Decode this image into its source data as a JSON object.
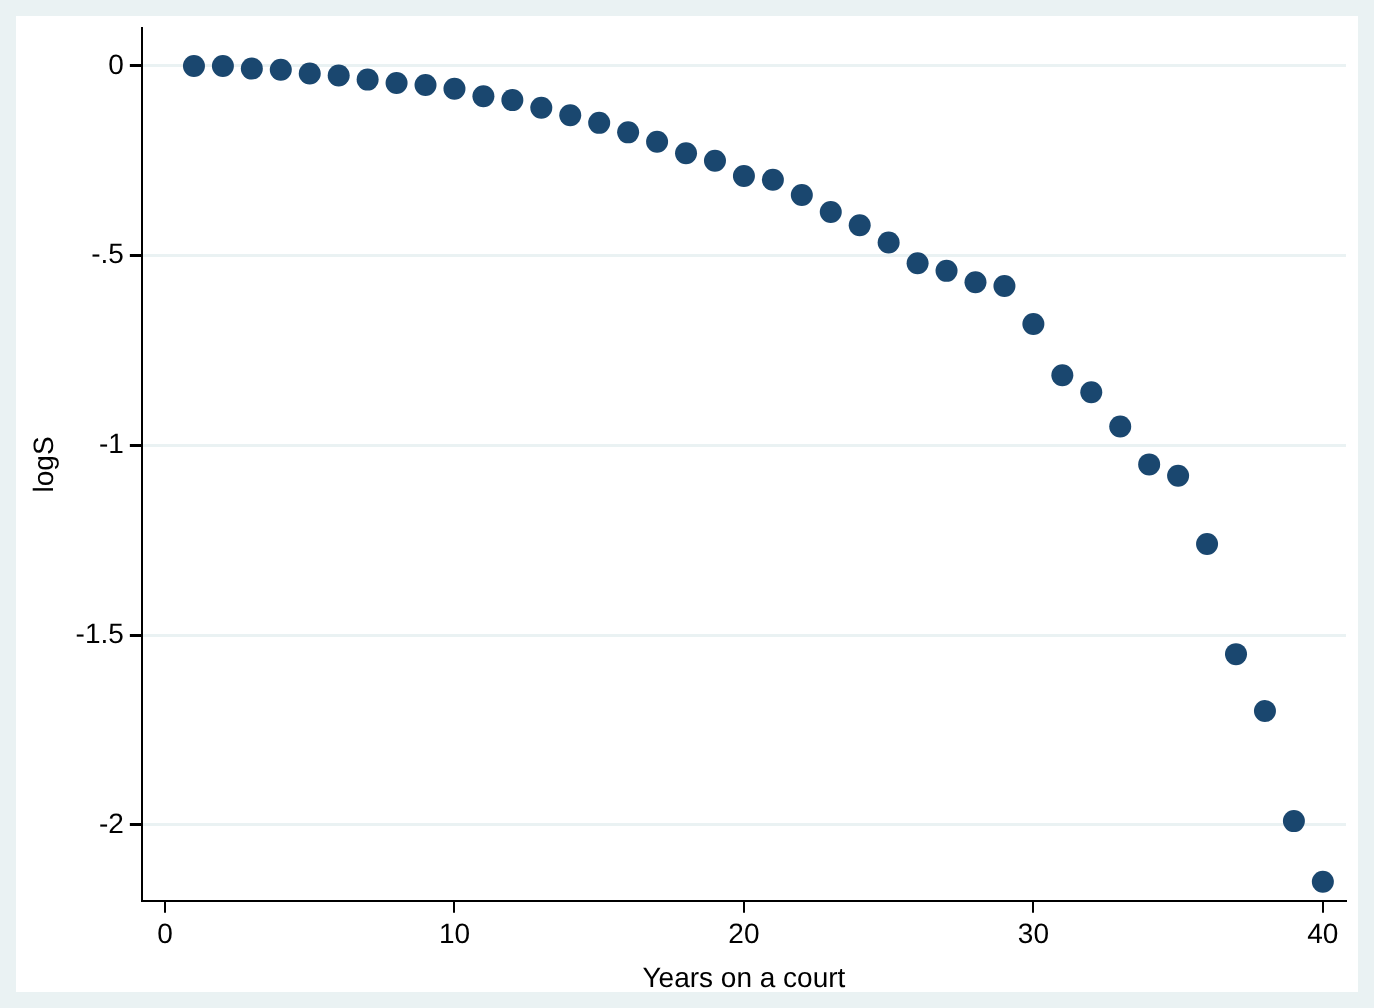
{
  "chart_data": {
    "type": "scatter",
    "xlabel": "Years on a court",
    "ylabel": "logS",
    "x": [
      1,
      2,
      3,
      4,
      5,
      6,
      7,
      8,
      9,
      10,
      11,
      12,
      13,
      14,
      15,
      16,
      17,
      18,
      19,
      20,
      21,
      22,
      23,
      24,
      25,
      26,
      27,
      28,
      29,
      30,
      31,
      32,
      33,
      34,
      35,
      36,
      37,
      38,
      39,
      40
    ],
    "series": [
      {
        "color": "#1a476f",
        "values": [
          0,
          0,
          -0.007,
          -0.01,
          -0.02,
          -0.025,
          -0.036,
          -0.045,
          -0.05,
          -0.06,
          -0.08,
          -0.09,
          -0.11,
          -0.13,
          -0.15,
          -0.175,
          -0.2,
          -0.23,
          -0.25,
          -0.29,
          -0.3,
          -0.34,
          -0.385,
          -0.42,
          -0.465,
          -0.52,
          -0.54,
          -0.57,
          -0.58,
          -0.68,
          -0.815,
          -0.86,
          -0.95,
          -1.05,
          -1.08,
          -1.26,
          -1.55,
          -1.7,
          -1.99,
          -2.15
        ]
      }
    ],
    "xlim": [
      -0.8,
      40.8
    ],
    "xticks": [
      0,
      10,
      20,
      30,
      40
    ],
    "ylim": [
      -2.2,
      0.1
    ],
    "yticks": [
      0,
      {
        "value": -0.5,
        "label": "-.5"
      },
      -1,
      {
        "value": -1.5,
        "label": "-1.5"
      },
      -2
    ],
    "grid": "y",
    "marker": "circle",
    "legend": false
  }
}
